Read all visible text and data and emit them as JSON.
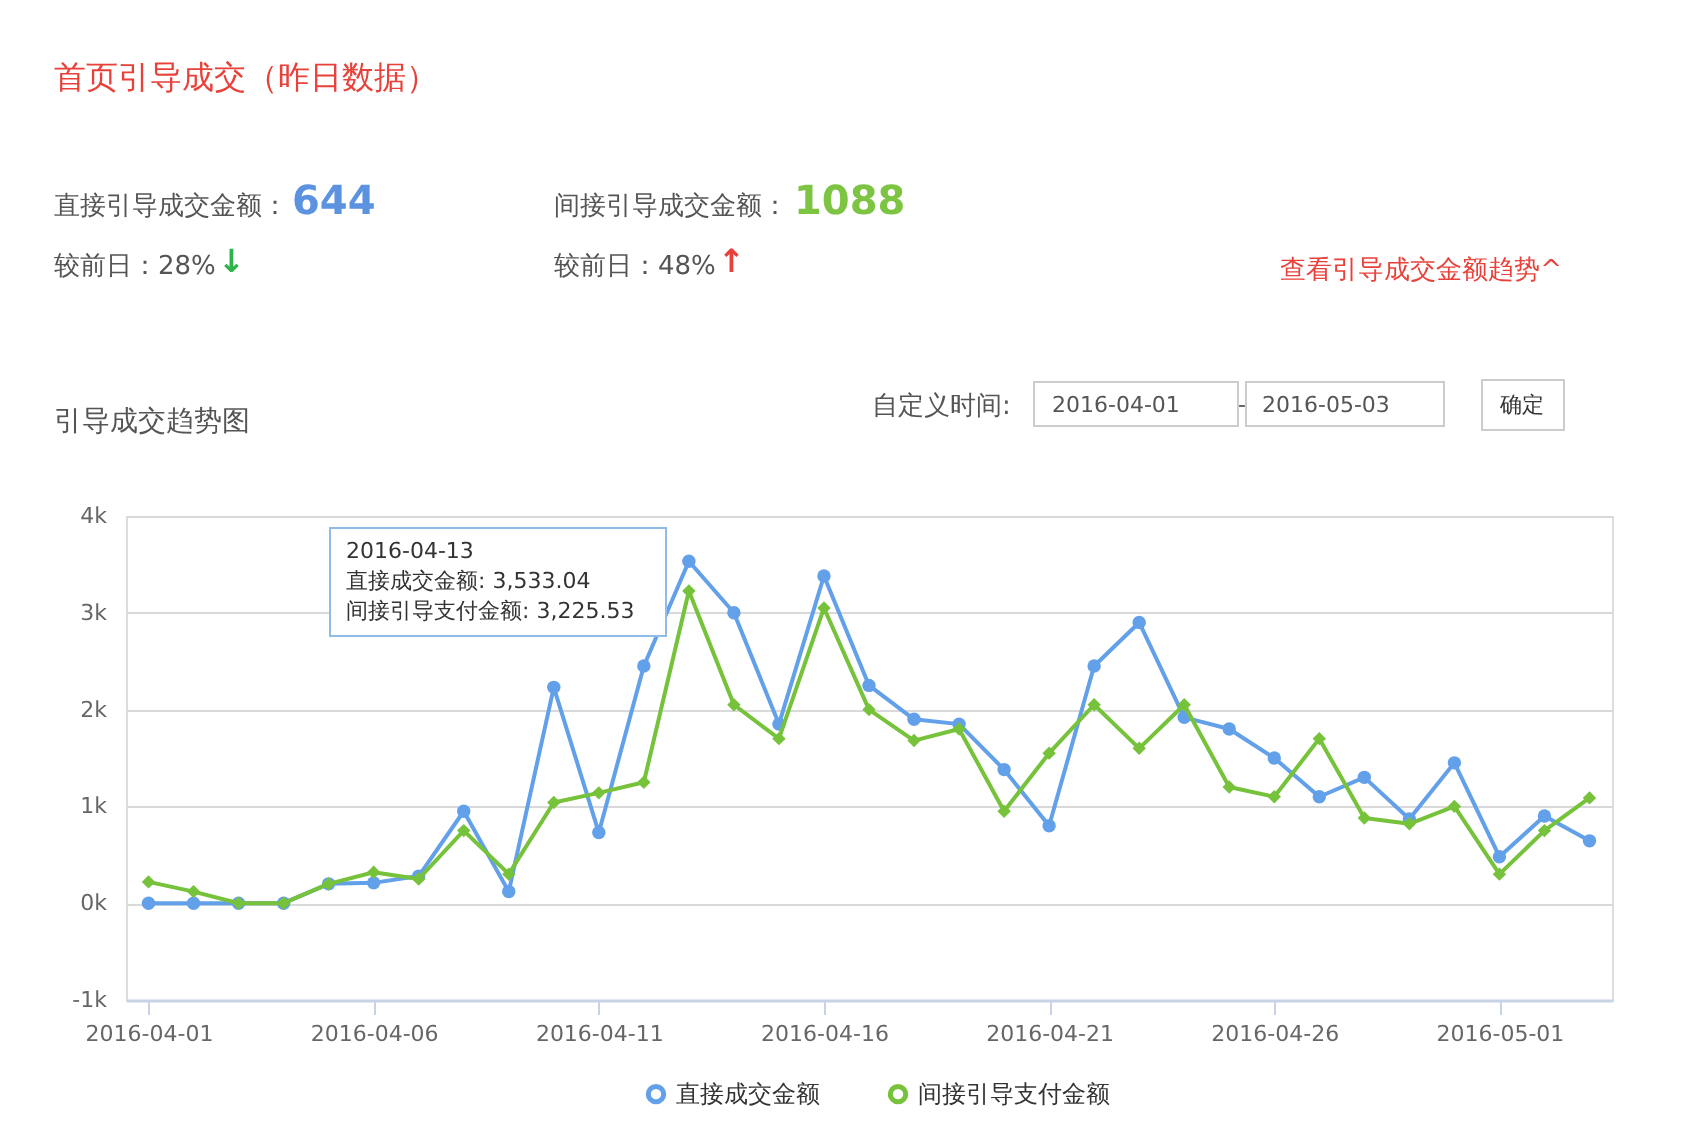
{
  "chart_data": {
    "type": "line",
    "title": "首页引导成交（昨日数据）",
    "subtitle": "引导成交趋势图",
    "categories": [
      "2016-04-01",
      null,
      null,
      null,
      null,
      "2016-04-06",
      null,
      null,
      null,
      null,
      "2016-04-11",
      null,
      null,
      null,
      null,
      "2016-04-16",
      null,
      null,
      null,
      null,
      "2016-04-21",
      null,
      null,
      null,
      null,
      "2016-04-26",
      null,
      null,
      null,
      null,
      "2016-05-01",
      null,
      null
    ],
    "series": [
      {
        "name": "直接成交金额",
        "color": "#62a0ea",
        "values": [
          0,
          0,
          0,
          0,
          200,
          210,
          280,
          950,
          120,
          2230,
          730,
          2450,
          3533.04,
          3000,
          1850,
          3380,
          2250,
          1900,
          1850,
          1380,
          800,
          2450,
          2900,
          1920,
          1800,
          1500,
          1100,
          1300,
          870,
          1450,
          480,
          900,
          644
        ]
      },
      {
        "name": "间接引导支付金额",
        "color": "#76c23a",
        "marker": "diamond",
        "values": [
          220,
          120,
          0,
          0,
          200,
          320,
          250,
          750,
          300,
          1040,
          1140,
          1250,
          3225.53,
          2050,
          1700,
          3050,
          2000,
          1680,
          1800,
          950,
          1550,
          2050,
          1600,
          2050,
          1200,
          1100,
          1700,
          880,
          820,
          1000,
          300,
          750,
          1088
        ]
      }
    ],
    "ylim": [
      -1000,
      4000
    ],
    "yticks": [
      {
        "value": -1000,
        "label": "-1k"
      },
      {
        "value": 0,
        "label": "0k"
      },
      {
        "value": 1000,
        "label": "1k"
      },
      {
        "value": 2000,
        "label": "2k"
      },
      {
        "value": 3000,
        "label": "3k"
      },
      {
        "value": 4000,
        "label": "4k"
      }
    ],
    "grid": "y",
    "legend": "bottom",
    "marker": "circle",
    "line_style": "solid",
    "annotations": [
      "直接引导成交金额：",
      "644",
      "间接引导成交金额：",
      "1088",
      "较前日：28%",
      "↓",
      "较前日：48%",
      "↑",
      "查看引导成交金额趋势^",
      "自定义时间:",
      "2016-04-01",
      "-",
      "2016-05-03",
      "确定",
      "2016-04-13",
      "直接成交金额: 3,533.04",
      "间接引导支付金额: 3,225.53"
    ]
  }
}
